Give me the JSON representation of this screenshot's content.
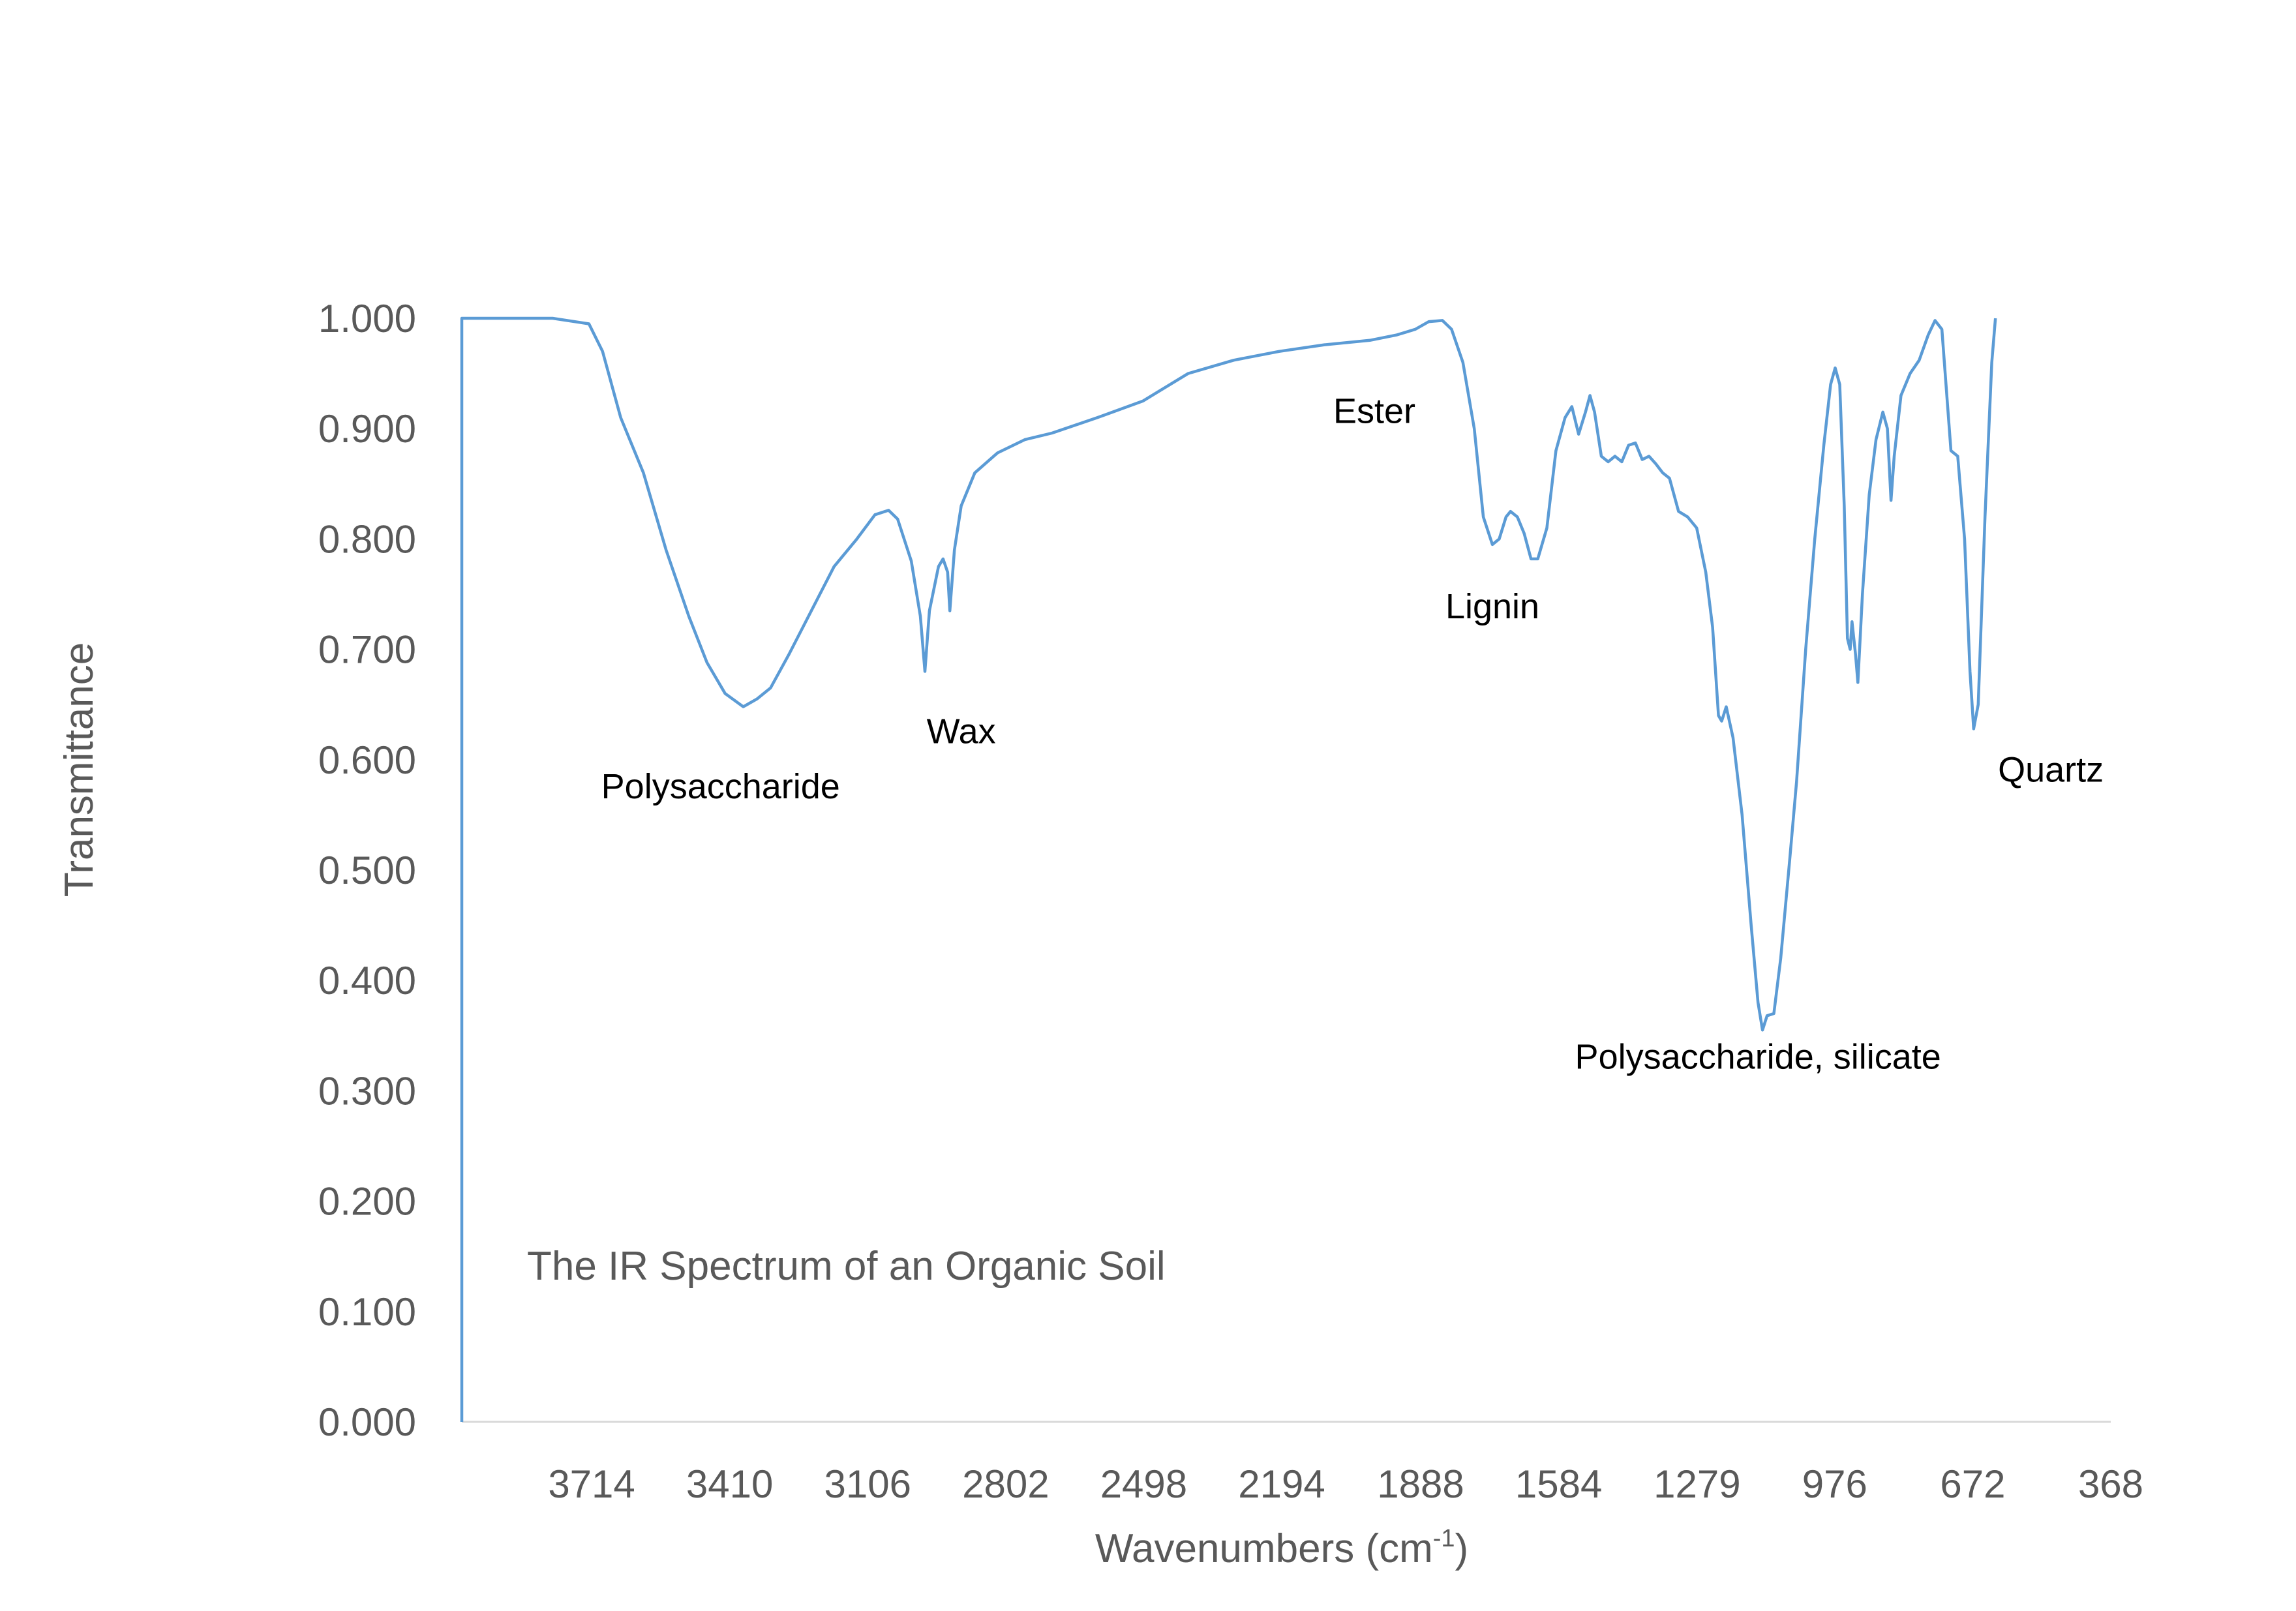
{
  "chart_data": {
    "type": "line",
    "title": "The IR Spectrum of an Organic Soil",
    "xlabel": "Wavenumbers (cm",
    "xlabel_superscript": "-1",
    "xlabel_suffix": ")",
    "ylabel": "Transmittance",
    "xlim": [
      4000,
      368
    ],
    "ylim": [
      0,
      1
    ],
    "x_reversed": true,
    "grid": false,
    "line_color": "#5B9BD5",
    "y_ticks": [
      "0.000",
      "0.100",
      "0.200",
      "0.300",
      "0.400",
      "0.500",
      "0.600",
      "0.700",
      "0.800",
      "0.900",
      "1.000"
    ],
    "x_ticks": [
      "3714",
      "3410",
      "3106",
      "2802",
      "2498",
      "2194",
      "1888",
      "1584",
      "1279",
      "976",
      "672",
      "368"
    ],
    "annotations": [
      {
        "text": "Polysaccharide",
        "x": 3430,
        "y": 0.565
      },
      {
        "text": "Wax",
        "x": 2900,
        "y": 0.615
      },
      {
        "text": "Ester",
        "x": 1990,
        "y": 0.905
      },
      {
        "text": "Lignin",
        "x": 1730,
        "y": 0.728
      },
      {
        "text": "Polysaccharide, silicate",
        "x": 1145,
        "y": 0.32
      },
      {
        "text": "Quartz",
        "x": 500,
        "y": 0.58
      }
    ],
    "series": [
      {
        "points": [
          [
            4000,
            0.0
          ],
          [
            4000,
            1.0
          ],
          [
            3900,
            1.0
          ],
          [
            3800,
            1.0
          ],
          [
            3720,
            0.995
          ],
          [
            3690,
            0.97
          ],
          [
            3650,
            0.91
          ],
          [
            3600,
            0.86
          ],
          [
            3550,
            0.79
          ],
          [
            3500,
            0.73
          ],
          [
            3460,
            0.688
          ],
          [
            3420,
            0.66
          ],
          [
            3380,
            0.648
          ],
          [
            3350,
            0.655
          ],
          [
            3320,
            0.665
          ],
          [
            3280,
            0.695
          ],
          [
            3230,
            0.735
          ],
          [
            3180,
            0.775
          ],
          [
            3130,
            0.8
          ],
          [
            3090,
            0.822
          ],
          [
            3060,
            0.826
          ],
          [
            3040,
            0.818
          ],
          [
            3010,
            0.78
          ],
          [
            2990,
            0.73
          ],
          [
            2980,
            0.68
          ],
          [
            2970,
            0.735
          ],
          [
            2950,
            0.775
          ],
          [
            2940,
            0.782
          ],
          [
            2930,
            0.77
          ],
          [
            2925,
            0.735
          ],
          [
            2915,
            0.79
          ],
          [
            2900,
            0.83
          ],
          [
            2870,
            0.86
          ],
          [
            2820,
            0.878
          ],
          [
            2760,
            0.89
          ],
          [
            2700,
            0.896
          ],
          [
            2600,
            0.91
          ],
          [
            2500,
            0.925
          ],
          [
            2400,
            0.95
          ],
          [
            2300,
            0.962
          ],
          [
            2200,
            0.97
          ],
          [
            2100,
            0.976
          ],
          [
            2000,
            0.98
          ],
          [
            1940,
            0.985
          ],
          [
            1900,
            0.99
          ],
          [
            1870,
            0.997
          ],
          [
            1840,
            0.998
          ],
          [
            1820,
            0.99
          ],
          [
            1795,
            0.96
          ],
          [
            1770,
            0.9
          ],
          [
            1750,
            0.82
          ],
          [
            1730,
            0.795
          ],
          [
            1715,
            0.8
          ],
          [
            1700,
            0.82
          ],
          [
            1690,
            0.825
          ],
          [
            1675,
            0.82
          ],
          [
            1660,
            0.805
          ],
          [
            1645,
            0.782
          ],
          [
            1630,
            0.782
          ],
          [
            1610,
            0.81
          ],
          [
            1590,
            0.88
          ],
          [
            1570,
            0.91
          ],
          [
            1555,
            0.92
          ],
          [
            1540,
            0.895
          ],
          [
            1525,
            0.915
          ],
          [
            1515,
            0.93
          ],
          [
            1505,
            0.915
          ],
          [
            1490,
            0.875
          ],
          [
            1475,
            0.87
          ],
          [
            1460,
            0.875
          ],
          [
            1445,
            0.87
          ],
          [
            1430,
            0.885
          ],
          [
            1415,
            0.887
          ],
          [
            1400,
            0.872
          ],
          [
            1385,
            0.875
          ],
          [
            1370,
            0.868
          ],
          [
            1355,
            0.86
          ],
          [
            1340,
            0.855
          ],
          [
            1320,
            0.825
          ],
          [
            1300,
            0.82
          ],
          [
            1280,
            0.81
          ],
          [
            1260,
            0.77
          ],
          [
            1245,
            0.72
          ],
          [
            1232,
            0.64
          ],
          [
            1225,
            0.635
          ],
          [
            1215,
            0.648
          ],
          [
            1200,
            0.62
          ],
          [
            1180,
            0.55
          ],
          [
            1160,
            0.45
          ],
          [
            1145,
            0.38
          ],
          [
            1135,
            0.355
          ],
          [
            1125,
            0.368
          ],
          [
            1110,
            0.37
          ],
          [
            1095,
            0.42
          ],
          [
            1075,
            0.51
          ],
          [
            1060,
            0.58
          ],
          [
            1040,
            0.7
          ],
          [
            1020,
            0.8
          ],
          [
            1000,
            0.885
          ],
          [
            985,
            0.94
          ],
          [
            975,
            0.955
          ],
          [
            965,
            0.94
          ],
          [
            955,
            0.83
          ],
          [
            948,
            0.71
          ],
          [
            942,
            0.7
          ],
          [
            938,
            0.725
          ],
          [
            930,
            0.695
          ],
          [
            925,
            0.67
          ],
          [
            915,
            0.75
          ],
          [
            900,
            0.84
          ],
          [
            885,
            0.89
          ],
          [
            870,
            0.915
          ],
          [
            860,
            0.9
          ],
          [
            852,
            0.835
          ],
          [
            845,
            0.875
          ],
          [
            830,
            0.93
          ],
          [
            810,
            0.95
          ],
          [
            790,
            0.962
          ],
          [
            770,
            0.985
          ],
          [
            755,
            0.998
          ],
          [
            740,
            0.99
          ],
          [
            720,
            0.88
          ],
          [
            705,
            0.875
          ],
          [
            690,
            0.8
          ],
          [
            678,
            0.68
          ],
          [
            670,
            0.628
          ],
          [
            660,
            0.65
          ],
          [
            645,
            0.82
          ],
          [
            630,
            0.96
          ],
          [
            622,
            1.0
          ]
        ]
      }
    ]
  }
}
